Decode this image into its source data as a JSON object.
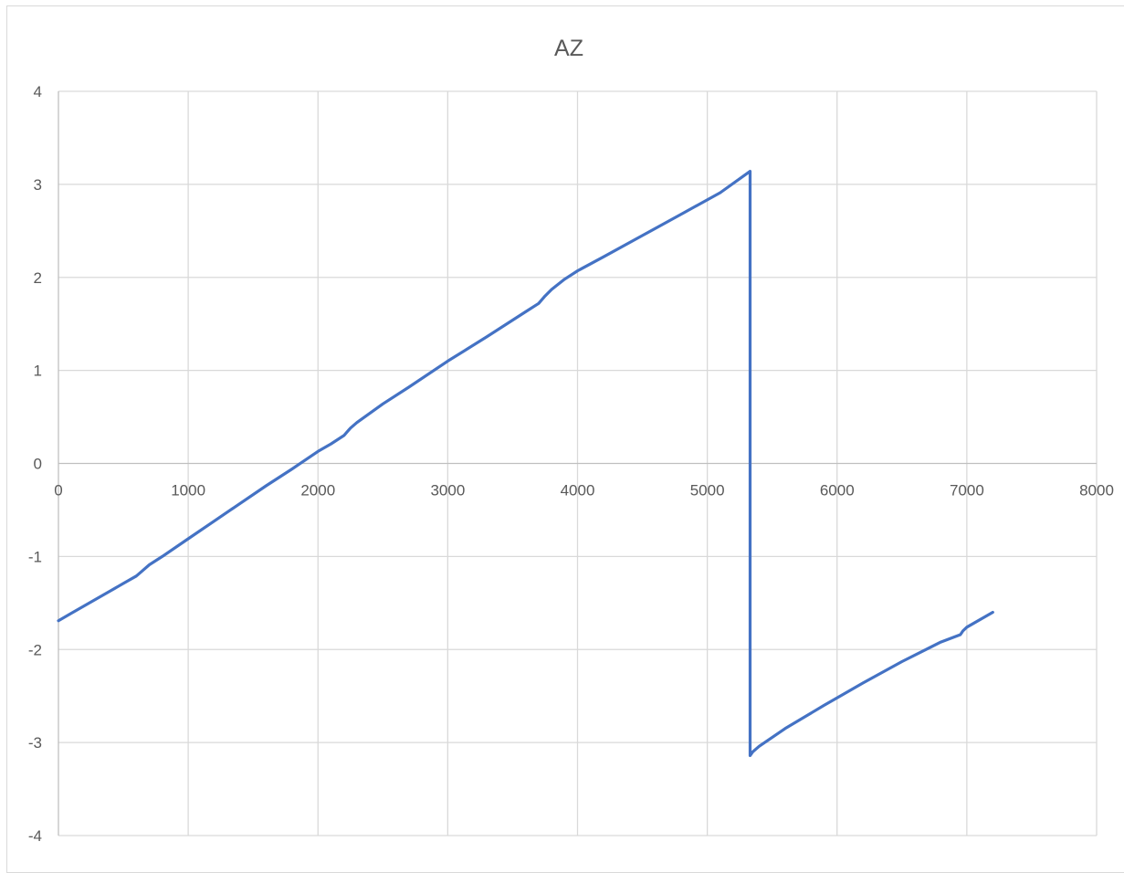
{
  "chart_data": {
    "type": "line",
    "title": "AZ",
    "xlabel": "",
    "ylabel": "",
    "xlim": [
      0,
      8000
    ],
    "ylim": [
      -4,
      4
    ],
    "x_ticks": [
      0,
      1000,
      2000,
      3000,
      4000,
      5000,
      6000,
      7000,
      8000
    ],
    "y_ticks": [
      4,
      3,
      2,
      1,
      0,
      -1,
      -2,
      -3,
      -4
    ],
    "grid": true,
    "legend": "none",
    "colors": {
      "series": "#4472c4",
      "grid": "#d9d9d9",
      "text": "#595959"
    },
    "series": [
      {
        "x": [
          0,
          100,
          200,
          300,
          400,
          500,
          600,
          650,
          700,
          800,
          1000,
          1200,
          1400,
          1600,
          1800,
          2000,
          2100,
          2200,
          2250,
          2300,
          2500,
          2700,
          3000,
          3300,
          3600,
          3700,
          3750,
          3800,
          3900,
          4000,
          4200,
          4500,
          4800,
          5100,
          5330,
          5330,
          5350,
          5400,
          5600,
          5900,
          6200,
          6500,
          6800,
          6950,
          6970,
          7000,
          7200
        ],
        "y": [
          -1.69,
          -1.61,
          -1.53,
          -1.45,
          -1.37,
          -1.29,
          -1.21,
          -1.15,
          -1.09,
          -1.0,
          -0.81,
          -0.62,
          -0.43,
          -0.24,
          -0.06,
          0.13,
          0.21,
          0.3,
          0.38,
          0.44,
          0.64,
          0.82,
          1.1,
          1.36,
          1.63,
          1.72,
          1.8,
          1.87,
          1.98,
          2.07,
          2.22,
          2.45,
          2.68,
          2.91,
          3.14,
          -3.14,
          -3.1,
          -3.04,
          -2.85,
          -2.6,
          -2.36,
          -2.13,
          -1.92,
          -1.84,
          -1.8,
          -1.76,
          -1.6
        ]
      }
    ]
  }
}
